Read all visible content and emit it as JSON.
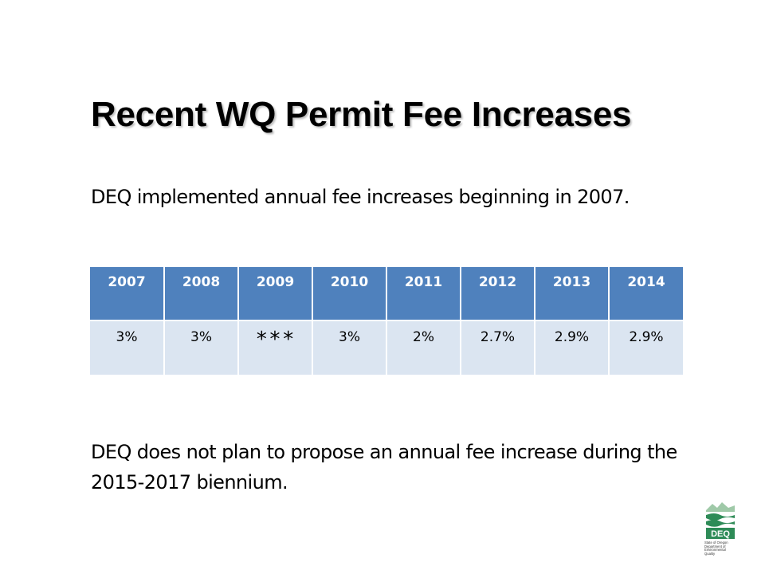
{
  "slide": {
    "title": "Recent WQ Permit Fee Increases",
    "intro": "DEQ implemented annual fee increases beginning in 2007.",
    "outro": "DEQ does not plan to propose an annual fee increase during the 2015-2017 biennium."
  },
  "fee_table": {
    "years": [
      "2007",
      "2008",
      "2009",
      "2010",
      "2011",
      "2012",
      "2013",
      "2014"
    ],
    "increases": [
      "3%",
      "3%",
      "***",
      "3%",
      "2%",
      "2.7%",
      "2.9%",
      "2.9%"
    ]
  },
  "logo": {
    "label": "DEQ",
    "lines": [
      "State of Oregon",
      "Department of",
      "Environmental",
      "Quality"
    ]
  },
  "colors": {
    "header_bg": "#4f81bd",
    "row_bg": "#dbe5f1",
    "logo_green": "#2e8b57"
  }
}
